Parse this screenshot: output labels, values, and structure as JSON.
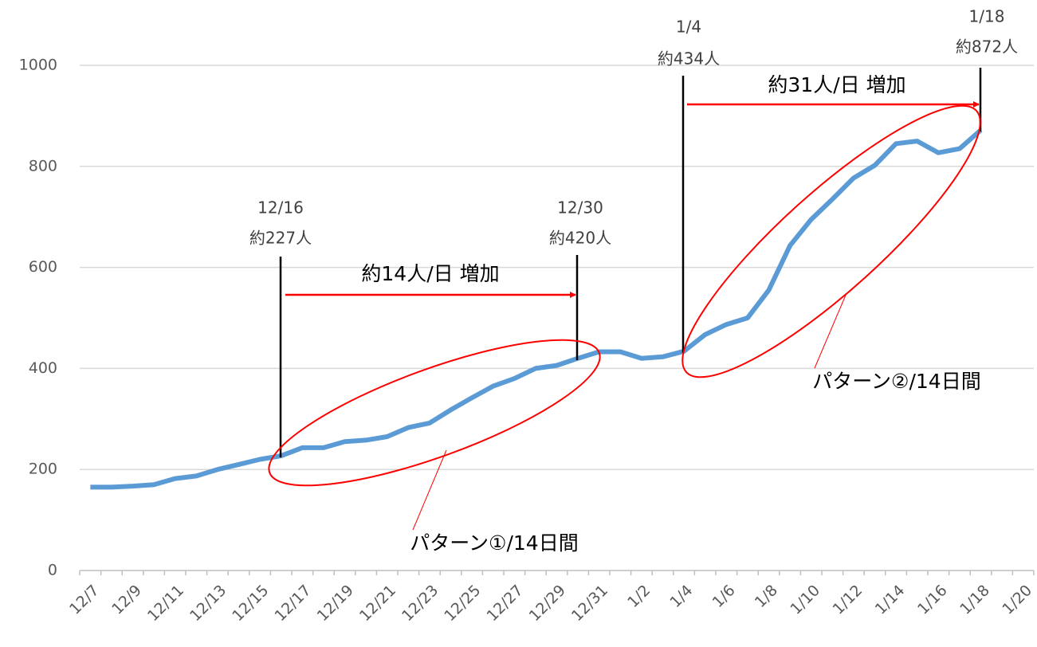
{
  "chart_data": {
    "type": "line",
    "categories": [
      "12/7",
      null,
      "12/9",
      null,
      "12/11",
      null,
      "12/13",
      null,
      "12/15",
      null,
      "12/17",
      null,
      "12/19",
      null,
      "12/21",
      null,
      "12/23",
      null,
      "12/25",
      null,
      "12/27",
      null,
      "12/29",
      null,
      "12/31",
      null,
      "1/2",
      null,
      "1/4",
      null,
      "1/6",
      null,
      "1/8",
      null,
      "1/10",
      null,
      "1/12",
      null,
      "1/14",
      null,
      "1/16",
      null,
      "1/18",
      null,
      "1/20"
    ],
    "series": [
      {
        "color": "#5b9bd5",
        "values": [
          165,
          165,
          167,
          170,
          182,
          187,
          200,
          210,
          220,
          227,
          243,
          243,
          255,
          258,
          265,
          283,
          292,
          318,
          342,
          365,
          380,
          400,
          406,
          420,
          433,
          433,
          420,
          423,
          434,
          467,
          487,
          500,
          555,
          643,
          695,
          735,
          777,
          802,
          845,
          850,
          827,
          835,
          872,
          null,
          null
        ]
      }
    ],
    "ylim": [
      0,
      1000
    ],
    "yticks": [
      0,
      200,
      400,
      600,
      800,
      1000
    ],
    "grid": true,
    "annotations": {
      "callouts": [
        [
          "12/16",
          "約227人"
        ],
        [
          "12/30",
          "約420人"
        ],
        [
          "1/4",
          "約434人"
        ],
        [
          "1/18",
          "約872人"
        ]
      ],
      "rates": [
        "約14人/日 増加",
        "約31人/日 増加"
      ],
      "patterns": [
        "パターン①/14日間",
        "パターン②/14日間"
      ]
    }
  }
}
